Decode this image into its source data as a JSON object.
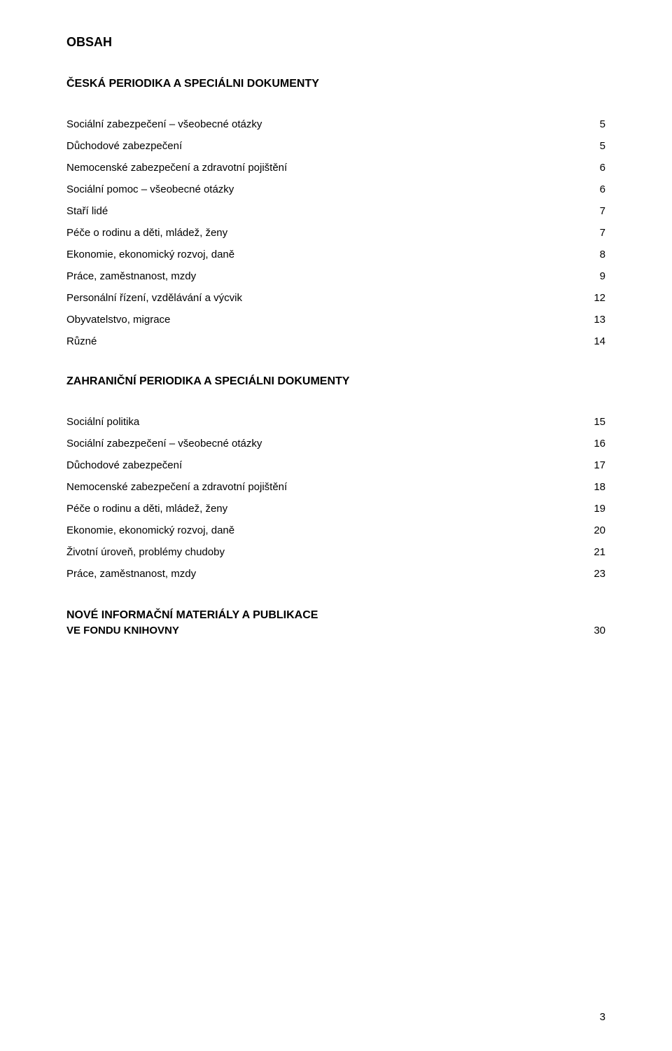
{
  "title": "OBSAH",
  "section1_head": "ČESKÁ PERIODIKA A SPECIÁLNI DOKUMENTY",
  "section1_items": [
    {
      "label": "Sociální zabezpečení – všeobecné otázky",
      "page": "5"
    },
    {
      "label": "Důchodové zabezpečení",
      "page": "5"
    },
    {
      "label": "Nemocenské zabezpečení a zdravotní pojištění",
      "page": "6"
    },
    {
      "label": "Sociální pomoc – všeobecné otázky",
      "page": "6"
    },
    {
      "label": "Staří lidé",
      "page": "7"
    },
    {
      "label": "Péče o rodinu a děti, mládež, ženy",
      "page": "7"
    },
    {
      "label": "Ekonomie, ekonomický rozvoj, daně",
      "page": "8"
    },
    {
      "label": "Práce, zaměstnanost, mzdy",
      "page": "9"
    },
    {
      "label": "Personální řízení, vzdělávání a výcvik",
      "page": "12"
    },
    {
      "label": "Obyvatelstvo, migrace",
      "page": "13"
    },
    {
      "label": "Různé",
      "page": "14"
    }
  ],
  "section2_head": "ZAHRANIČNÍ PERIODIKA A SPECIÁLNI DOKUMENTY",
  "section2_items": [
    {
      "label": "Sociální politika",
      "page": "15"
    },
    {
      "label": "Sociální zabezpečení – všeobecné otázky",
      "page": "16"
    },
    {
      "label": "Důchodové zabezpečení",
      "page": "17"
    },
    {
      "label": "Nemocenské zabezpečení a zdravotní pojištění",
      "page": "18"
    },
    {
      "label": "Péče o rodinu a děti, mládež, ženy",
      "page": "19"
    },
    {
      "label": "Ekonomie, ekonomický rozvoj, daně",
      "page": "20"
    },
    {
      "label": "Životní úroveň, problémy chudoby",
      "page": "21"
    },
    {
      "label": "Práce, zaměstnanost, mzdy",
      "page": "23"
    }
  ],
  "final_head_line1": "NOVÉ INFORMAČNÍ MATERIÁLY A PUBLIKACE",
  "final_head_line2": "VE FONDU KNIHOVNY",
  "final_page": "30",
  "page_number": "3",
  "colors": {
    "text": "#000000",
    "background": "#ffffff"
  },
  "typography": {
    "body_family": "Verdana",
    "title_size_pt": 13,
    "heading_size_pt": 12,
    "body_size_pt": 11
  }
}
